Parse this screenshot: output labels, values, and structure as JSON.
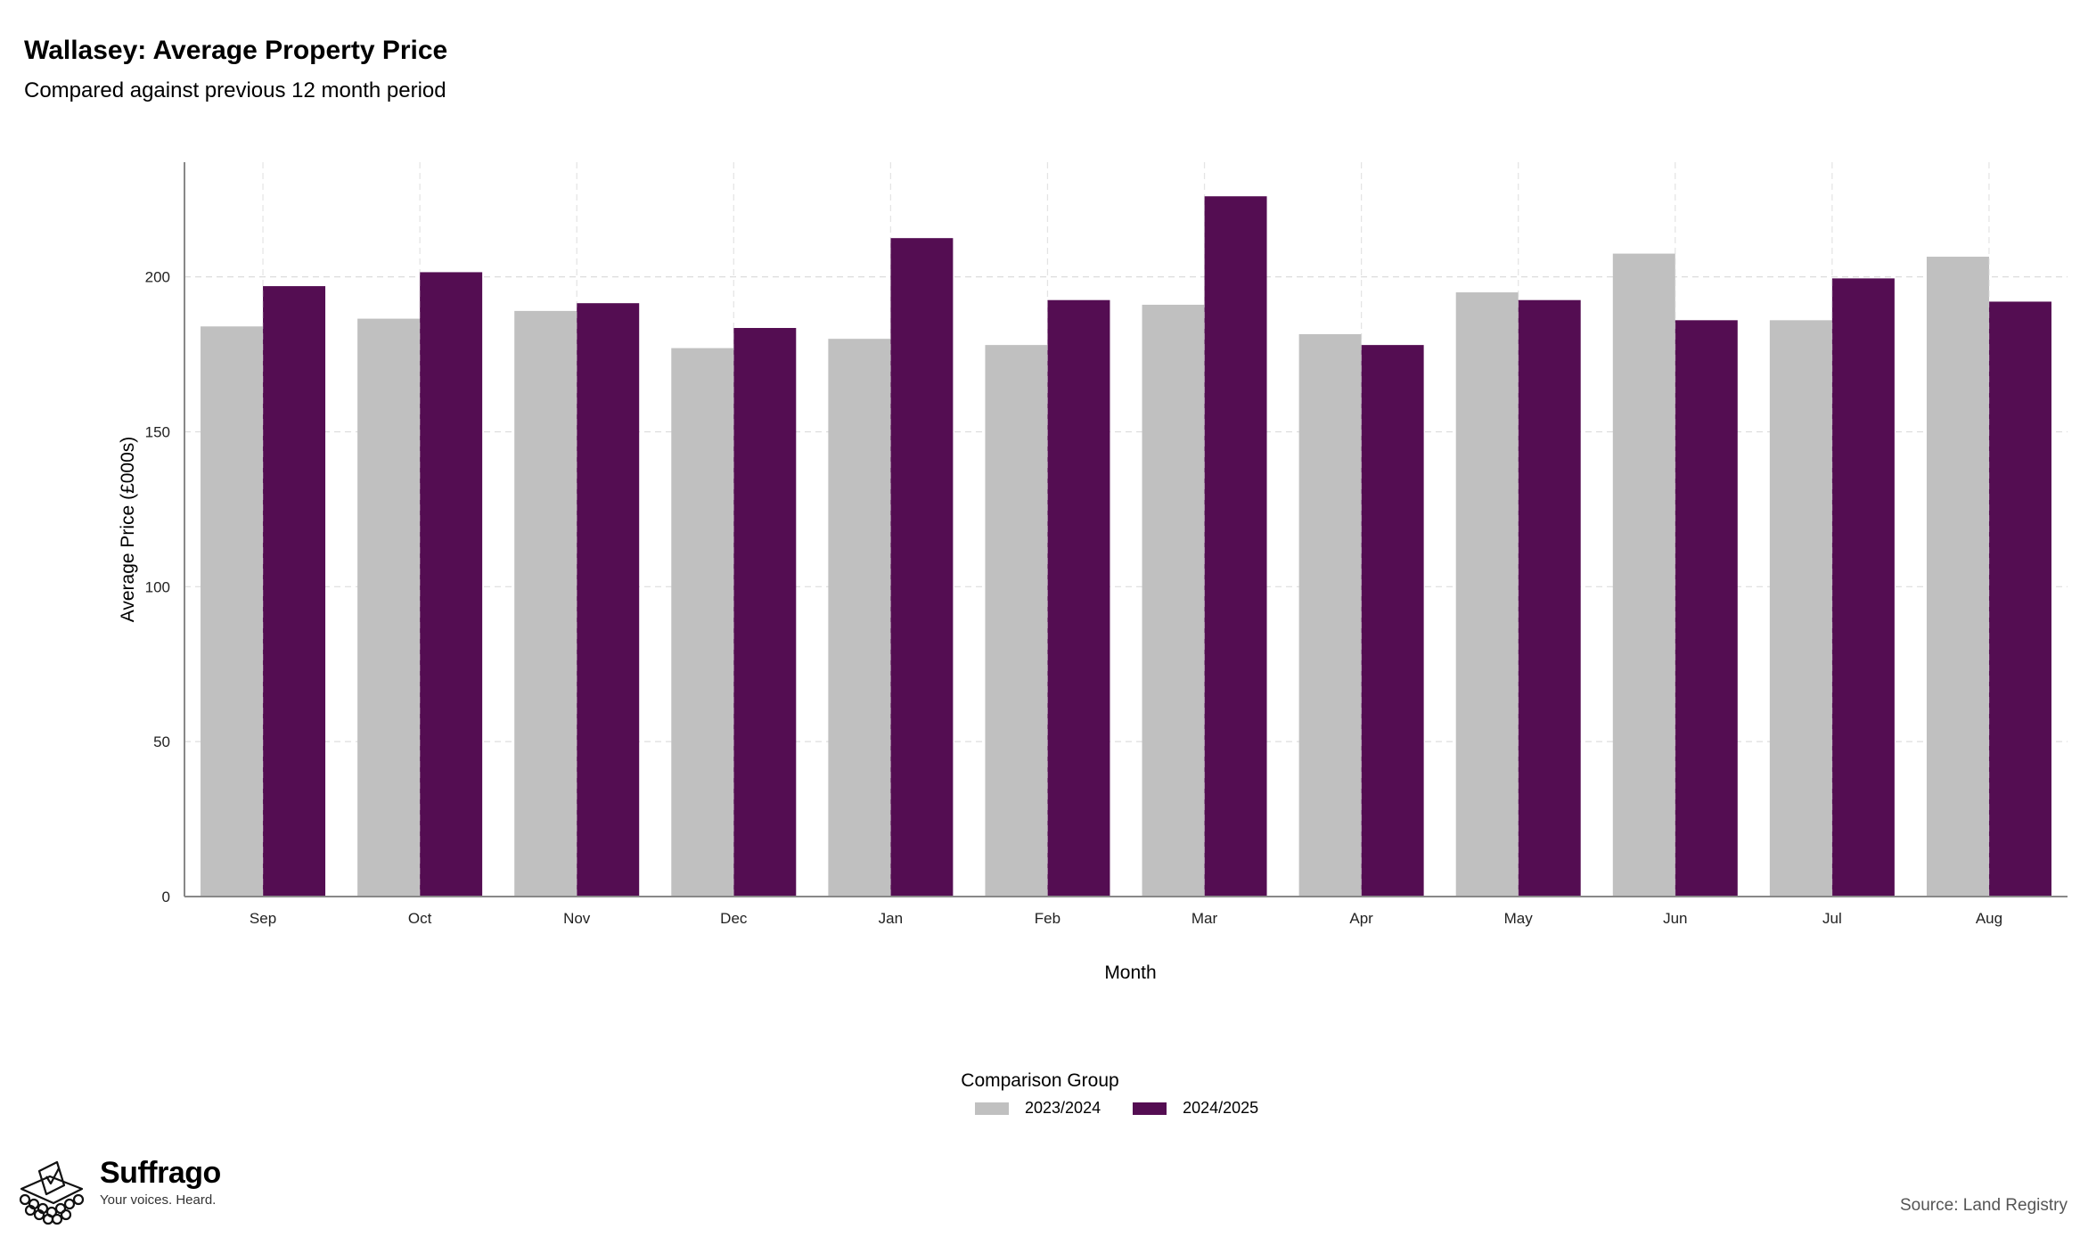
{
  "brand": {
    "name": "Suffrago",
    "tagline": "Your voices. Heard.",
    "logo_icon": "ballot-box-icon"
  },
  "source": "Source: Land Registry",
  "colors": {
    "series_a": "#c0c0c0",
    "series_b": "#540d52",
    "grid": "#dddddd",
    "axis": "#888888"
  },
  "legend": {
    "title": "Comparison Group"
  },
  "chart_data": {
    "type": "bar",
    "title": "Wallasey: Average Property Price",
    "subtitle": "Compared against previous 12 month period",
    "xlabel": "Month",
    "ylabel": "Average Price (£000s)",
    "ylim": [
      0,
      237
    ],
    "yticks": [
      0,
      50,
      100,
      150,
      200
    ],
    "grid": true,
    "legend_position": "bottom",
    "categories": [
      "Sep",
      "Oct",
      "Nov",
      "Dec",
      "Jan",
      "Feb",
      "Mar",
      "Apr",
      "May",
      "Jun",
      "Jul",
      "Aug"
    ],
    "series": [
      {
        "name": "2023/2024",
        "color": "#c0c0c0",
        "values": [
          184,
          186.5,
          189,
          177,
          180,
          178,
          191,
          181.5,
          195,
          207.5,
          186,
          206.5
        ]
      },
      {
        "name": "2024/2025",
        "color": "#540d52",
        "values": [
          197,
          201.5,
          191.5,
          183.5,
          212.5,
          192.5,
          226,
          178,
          192.5,
          186,
          199.5,
          192
        ]
      }
    ]
  }
}
